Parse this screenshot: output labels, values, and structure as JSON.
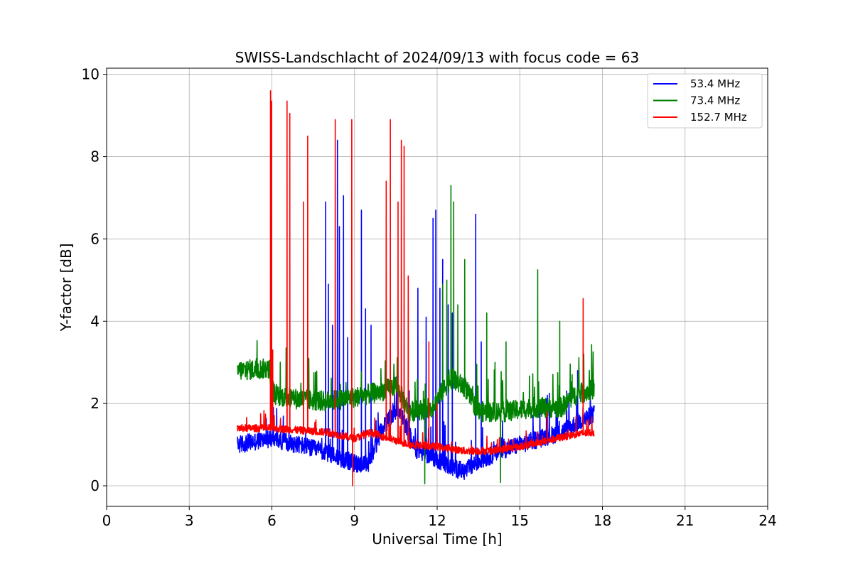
{
  "chart_data": {
    "type": "line",
    "title": "SWISS-Landschlacht of 2024/09/13 with focus code = 63",
    "xlabel": "Universal Time [h]",
    "ylabel": "Y-factor [dB]",
    "xlim": [
      0,
      24
    ],
    "ylim": [
      -0.5,
      10.15
    ],
    "xticks": [
      0,
      3,
      6,
      9,
      12,
      15,
      18,
      21,
      24
    ],
    "xtick_labels": [
      "0",
      "3",
      "6",
      "9",
      "12",
      "15",
      "18",
      "21",
      "24"
    ],
    "yticks": [
      0,
      2,
      4,
      6,
      8,
      10
    ],
    "ytick_labels": [
      "0",
      "2",
      "4",
      "6",
      "8",
      "10"
    ],
    "grid": true,
    "legend_position": "upper right",
    "series": [
      {
        "name": "53.4 MHz",
        "color": "#0000ff",
        "baseline": [
          [
            4.75,
            1.0
          ],
          [
            6.0,
            1.15
          ],
          [
            7.0,
            1.0
          ],
          [
            8.0,
            0.8
          ],
          [
            9.0,
            0.55
          ],
          [
            9.5,
            0.5
          ],
          [
            10.0,
            1.4
          ],
          [
            10.6,
            1.9
          ],
          [
            11.2,
            0.9
          ],
          [
            12.0,
            0.65
          ],
          [
            12.5,
            0.45
          ],
          [
            13.0,
            0.35
          ],
          [
            13.5,
            0.6
          ],
          [
            14.5,
            0.9
          ],
          [
            15.5,
            1.1
          ],
          [
            16.5,
            1.3
          ],
          [
            17.0,
            1.5
          ],
          [
            17.7,
            1.75
          ]
        ],
        "noise": 0.22,
        "spikes": [
          [
            7.95,
            6.9
          ],
          [
            8.05,
            4.9
          ],
          [
            8.2,
            3.9
          ],
          [
            8.38,
            8.4
          ],
          [
            8.45,
            6.3
          ],
          [
            8.6,
            7.05
          ],
          [
            8.75,
            3.6
          ],
          [
            9.25,
            6.7
          ],
          [
            9.4,
            4.3
          ],
          [
            9.6,
            3.9
          ],
          [
            10.3,
            3.6
          ],
          [
            11.3,
            4.8
          ],
          [
            11.6,
            4.1
          ],
          [
            11.85,
            6.5
          ],
          [
            11.95,
            6.7
          ],
          [
            12.1,
            4.8
          ],
          [
            12.2,
            5.5
          ],
          [
            12.4,
            4.4
          ],
          [
            12.55,
            4.2
          ],
          [
            13.4,
            6.6
          ],
          [
            13.6,
            3.5
          ],
          [
            16.0,
            2.2
          ],
          [
            17.1,
            2.8
          ]
        ]
      },
      {
        "name": "73.4 MHz",
        "color": "#008000",
        "baseline": [
          [
            4.75,
            2.8
          ],
          [
            5.9,
            2.85
          ],
          [
            6.1,
            2.2
          ],
          [
            7.0,
            2.1
          ],
          [
            8.0,
            2.05
          ],
          [
            9.0,
            2.15
          ],
          [
            10.0,
            2.3
          ],
          [
            10.5,
            2.45
          ],
          [
            11.0,
            1.8
          ],
          [
            11.8,
            1.9
          ],
          [
            12.5,
            2.6
          ],
          [
            13.0,
            2.4
          ],
          [
            13.5,
            1.8
          ],
          [
            14.5,
            1.8
          ],
          [
            15.5,
            1.9
          ],
          [
            16.5,
            1.9
          ],
          [
            17.0,
            2.2
          ],
          [
            17.7,
            2.35
          ]
        ],
        "noise": 0.25,
        "spikes": [
          [
            12.5,
            7.3
          ],
          [
            12.6,
            6.9
          ],
          [
            12.35,
            5.0
          ],
          [
            12.2,
            4.9
          ],
          [
            12.75,
            4.4
          ],
          [
            13.0,
            5.5
          ],
          [
            13.8,
            4.2
          ],
          [
            14.1,
            3.0
          ],
          [
            14.5,
            3.5
          ],
          [
            15.65,
            5.25
          ],
          [
            16.45,
            4.0
          ],
          [
            16.9,
            2.7
          ],
          [
            11.5,
            2.3
          ]
        ],
        "dips": [
          [
            11.55,
            0.05
          ],
          [
            14.3,
            0.08
          ]
        ]
      },
      {
        "name": "152.7 MHz",
        "color": "#ff0000",
        "baseline": [
          [
            4.75,
            1.4
          ],
          [
            6.0,
            1.4
          ],
          [
            7.0,
            1.35
          ],
          [
            8.0,
            1.3
          ],
          [
            9.0,
            1.15
          ],
          [
            9.6,
            1.3
          ],
          [
            10.0,
            1.2
          ],
          [
            11.0,
            1.0
          ],
          [
            12.0,
            0.95
          ],
          [
            13.0,
            0.85
          ],
          [
            14.0,
            0.85
          ],
          [
            15.0,
            0.95
          ],
          [
            16.0,
            1.1
          ],
          [
            17.0,
            1.25
          ],
          [
            17.7,
            1.3
          ]
        ],
        "noise": 0.09,
        "spikes": [
          [
            5.95,
            9.6
          ],
          [
            5.99,
            9.35
          ],
          [
            6.03,
            3.3
          ],
          [
            6.55,
            9.35
          ],
          [
            6.65,
            9.05
          ],
          [
            7.15,
            6.9
          ],
          [
            7.3,
            8.5
          ],
          [
            8.3,
            8.9
          ],
          [
            8.9,
            8.9
          ],
          [
            10.15,
            7.4
          ],
          [
            10.3,
            8.9
          ],
          [
            10.7,
            8.4
          ],
          [
            10.8,
            8.25
          ],
          [
            10.58,
            6.9
          ],
          [
            10.95,
            5.1
          ],
          [
            11.7,
            3.5
          ],
          [
            12.0,
            2.0
          ],
          [
            16.0,
            1.8
          ],
          [
            17.3,
            4.55
          ]
        ],
        "dips": [
          [
            8.93,
            0.0
          ]
        ]
      }
    ]
  }
}
